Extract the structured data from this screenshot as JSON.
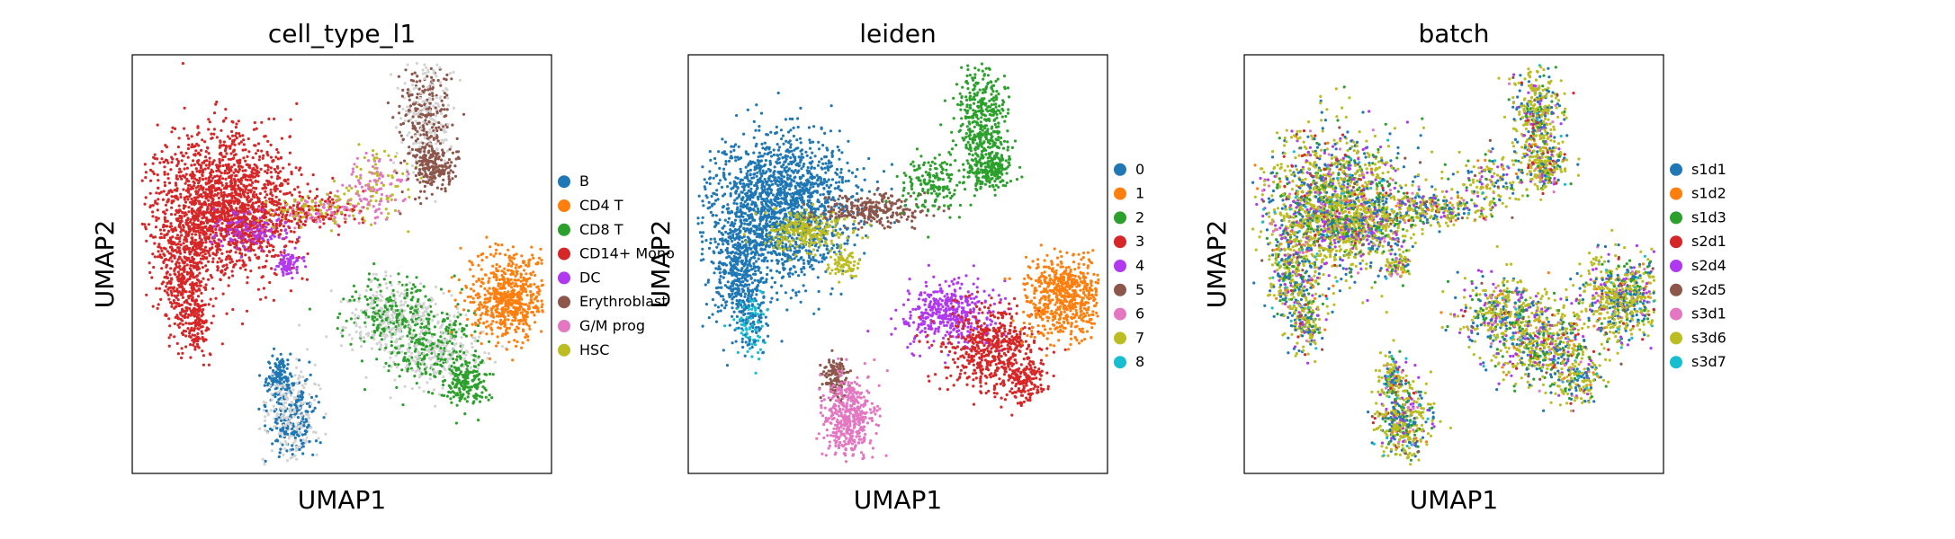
{
  "chart_data": [
    {
      "type": "scatter",
      "title": "cell_type_l1",
      "xlabel": "UMAP1",
      "ylabel": "UMAP2",
      "grid": false,
      "legend_placement": "right",
      "series": [
        {
          "name": "B",
          "color": "#1f77b4"
        },
        {
          "name": "CD4 T",
          "color": "#ff7f0e"
        },
        {
          "name": "CD8 T",
          "color": "#2ca02c"
        },
        {
          "name": "CD14+ Mono",
          "color": "#d62728"
        },
        {
          "name": "DC",
          "color": "#b039ef"
        },
        {
          "name": "Erythroblast",
          "color": "#8c564b"
        },
        {
          "name": "G/M prog",
          "color": "#e377c2"
        },
        {
          "name": "HSC",
          "color": "#bcbd22"
        }
      ]
    },
    {
      "type": "scatter",
      "title": "leiden",
      "xlabel": "UMAP1",
      "ylabel": "UMAP2",
      "grid": false,
      "legend_placement": "right",
      "series": [
        {
          "name": "0",
          "color": "#1f77b4"
        },
        {
          "name": "1",
          "color": "#ff7f0e"
        },
        {
          "name": "2",
          "color": "#2ca02c"
        },
        {
          "name": "3",
          "color": "#d62728"
        },
        {
          "name": "4",
          "color": "#b039ef"
        },
        {
          "name": "5",
          "color": "#8c564b"
        },
        {
          "name": "6",
          "color": "#e377c2"
        },
        {
          "name": "7",
          "color": "#bcbd22"
        },
        {
          "name": "8",
          "color": "#17becf"
        }
      ]
    },
    {
      "type": "scatter",
      "title": "batch",
      "xlabel": "UMAP1",
      "ylabel": "UMAP2",
      "grid": false,
      "legend_placement": "right",
      "series": [
        {
          "name": "s1d1",
          "color": "#1f77b4"
        },
        {
          "name": "s1d2",
          "color": "#ff7f0e"
        },
        {
          "name": "s1d3",
          "color": "#2ca02c"
        },
        {
          "name": "s2d1",
          "color": "#d62728"
        },
        {
          "name": "s2d4",
          "color": "#b039ef"
        },
        {
          "name": "s2d5",
          "color": "#8c564b"
        },
        {
          "name": "s3d1",
          "color": "#e377c2"
        },
        {
          "name": "s3d6",
          "color": "#bcbd22"
        },
        {
          "name": "s3d7",
          "color": "#17becf"
        }
      ]
    }
  ]
}
